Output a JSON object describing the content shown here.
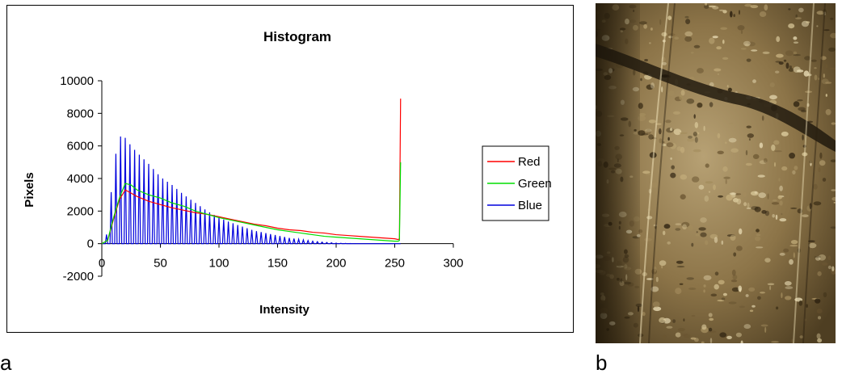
{
  "panels": {
    "left_label": "a",
    "right_label": "b"
  },
  "chart_data": {
    "type": "line",
    "title": "Histogram",
    "xlabel": "Intensity",
    "ylabel": "Pixels",
    "xlim": [
      0,
      300
    ],
    "ylim": [
      -2000,
      10000
    ],
    "xticks": [
      0,
      50,
      100,
      150,
      200,
      250,
      300
    ],
    "yticks": [
      -2000,
      0,
      2000,
      4000,
      6000,
      8000,
      10000
    ],
    "grid": false,
    "legend": "right",
    "series": [
      {
        "name": "Red",
        "color": "#ff0000",
        "x": [
          0,
          5,
          10,
          15,
          20,
          25,
          30,
          40,
          50,
          60,
          70,
          80,
          90,
          100,
          110,
          120,
          130,
          140,
          150,
          160,
          170,
          180,
          190,
          200,
          210,
          220,
          230,
          240,
          250,
          253,
          254,
          255
        ],
        "y": [
          0,
          200,
          1500,
          2700,
          3300,
          3100,
          2900,
          2600,
          2400,
          2200,
          2050,
          1900,
          1800,
          1650,
          1500,
          1350,
          1200,
          1100,
          950,
          850,
          800,
          700,
          650,
          550,
          500,
          450,
          400,
          350,
          300,
          250,
          300,
          8900
        ]
      },
      {
        "name": "Green",
        "color": "#00dd00",
        "x": [
          0,
          5,
          10,
          15,
          20,
          25,
          30,
          40,
          50,
          60,
          70,
          80,
          90,
          100,
          110,
          120,
          130,
          140,
          150,
          160,
          170,
          180,
          190,
          200,
          210,
          220,
          230,
          240,
          250,
          253,
          254,
          255
        ],
        "y": [
          0,
          200,
          1600,
          2800,
          3700,
          3600,
          3300,
          3000,
          2800,
          2500,
          2300,
          2000,
          1800,
          1600,
          1450,
          1300,
          1150,
          1000,
          850,
          750,
          650,
          550,
          450,
          400,
          350,
          300,
          250,
          200,
          150,
          150,
          200,
          5000
        ]
      },
      {
        "name": "Blue",
        "color": "#0000dd",
        "x": [
          0,
          5,
          10,
          15,
          20,
          25,
          30,
          40,
          50,
          60,
          70,
          80,
          90,
          100,
          110,
          120,
          130,
          140,
          150,
          160,
          170,
          180,
          190,
          200,
          210,
          220,
          230,
          240,
          250,
          255
        ],
        "y": [
          0,
          700,
          4800,
          6600,
          6500,
          6000,
          5600,
          4900,
          4100,
          3600,
          3000,
          2500,
          2000,
          1600,
          1300,
          1050,
          800,
          650,
          500,
          350,
          250,
          150,
          80,
          30,
          10,
          0,
          0,
          0,
          0,
          0
        ],
        "comb": true
      }
    ]
  }
}
